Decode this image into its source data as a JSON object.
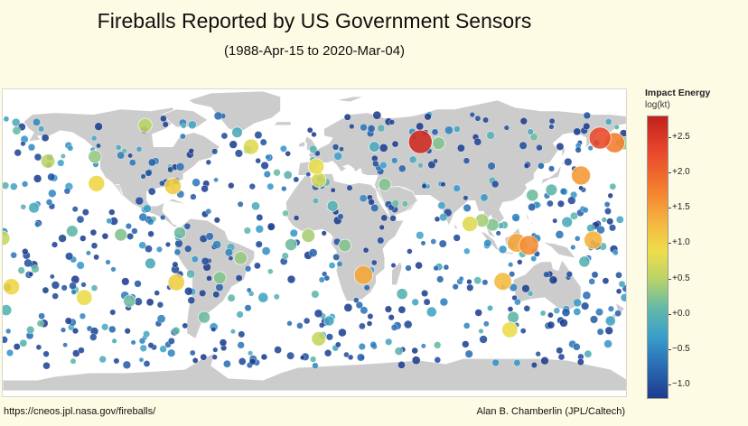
{
  "title": "Fireballs Reported by US Government Sensors",
  "subtitle": "(1988-Apr-15 to 2020-Mar-04)",
  "footer_left": "https://cneos.jpl.nasa.gov/fireballs/",
  "footer_right": "Alan B. Chamberlin (JPL/Caltech)",
  "colorbar": {
    "title": "Impact Energy",
    "unit": "log(kt)",
    "range": [
      -1.2,
      2.8
    ],
    "ticks": [
      {
        "value": 2.5,
        "label": "+2.5"
      },
      {
        "value": 2.0,
        "label": "+2.0"
      },
      {
        "value": 1.5,
        "label": "+1.5"
      },
      {
        "value": 1.0,
        "label": "+1.0"
      },
      {
        "value": 0.5,
        "label": "+0.5"
      },
      {
        "value": 0.0,
        "label": "+0.0"
      },
      {
        "value": -0.5,
        "label": "−0.5"
      },
      {
        "value": -1.0,
        "label": "−1.0"
      }
    ],
    "colors": [
      "#1d3b8c",
      "#2a6fb5",
      "#3a9fcb",
      "#63b9a7",
      "#b7d36a",
      "#eedd4a",
      "#f5b740",
      "#f47f2f",
      "#e8452b",
      "#c0221d"
    ]
  },
  "map": {
    "projection": "equirectangular",
    "land_color": "#cccccc",
    "ocean_color": "#ffffff",
    "coastline_color": "#ffffff"
  },
  "events": [
    {
      "lon": 60.5,
      "lat": 54.8,
      "energy": 2.65
    },
    {
      "lon": 164.0,
      "lat": 56.9,
      "energy": 2.3
    },
    {
      "lon": 172.4,
      "lat": 54.3,
      "energy": 1.9
    },
    {
      "lon": 153.0,
      "lat": 36.0,
      "energy": 1.7
    },
    {
      "lon": 123.0,
      "lat": -2.9,
      "energy": 1.8
    },
    {
      "lon": 116.0,
      "lat": -1.5,
      "energy": 1.6
    },
    {
      "lon": 160.0,
      "lat": 0.0,
      "energy": 1.5
    },
    {
      "lon": 27.8,
      "lat": -19.5,
      "energy": 1.6
    },
    {
      "lon": 108.0,
      "lat": -23.0,
      "energy": 1.4
    },
    {
      "lon": -82.0,
      "lat": 30.0,
      "energy": 1.2
    },
    {
      "lon": -126.0,
      "lat": 31.5,
      "energy": 1.1
    },
    {
      "lon": -80.0,
      "lat": -23.5,
      "energy": 1.2
    },
    {
      "lon": -175.0,
      "lat": -26.0,
      "energy": 1.1
    },
    {
      "lon": -133.0,
      "lat": -32.0,
      "energy": 1.0
    },
    {
      "lon": 0.5,
      "lat": 41.0,
      "energy": 1.0
    },
    {
      "lon": 2.0,
      "lat": 33.5,
      "energy": 0.8
    },
    {
      "lon": -37.0,
      "lat": 52.0,
      "energy": 0.9
    },
    {
      "lon": -98.0,
      "lat": 64.0,
      "energy": 0.6
    },
    {
      "lon": -4.0,
      "lat": 2.5,
      "energy": 0.5
    },
    {
      "lon": 2.0,
      "lat": -55.0,
      "energy": 0.7
    },
    {
      "lon": 112.0,
      "lat": -50.0,
      "energy": 1.0
    },
    {
      "lon": -180.0,
      "lat": 1.0,
      "energy": 0.7
    },
    {
      "lon": 96.0,
      "lat": 11.0,
      "energy": 0.5
    },
    {
      "lon": 89.0,
      "lat": 9.0,
      "energy": 0.9
    },
    {
      "lon": -154.0,
      "lat": 44.0,
      "energy": 0.6
    },
    {
      "lon": -112.0,
      "lat": 3.0,
      "energy": 0.3
    },
    {
      "lon": -43.0,
      "lat": -10.0,
      "energy": 0.4
    },
    {
      "lon": -55.0,
      "lat": -21.0,
      "energy": 0.3
    },
    {
      "lon": -127.0,
      "lat": 46.5,
      "energy": 0.4
    },
    {
      "lon": 71.0,
      "lat": 54.0,
      "energy": 0.3
    },
    {
      "lon": 102.0,
      "lat": 8.5,
      "energy": 0.3
    },
    {
      "lon": 178.0,
      "lat": 54.0,
      "energy": 0.4
    },
    {
      "lon": 40.0,
      "lat": 31.0,
      "energy": 0.3
    },
    {
      "lon": 17.0,
      "lat": -3.0,
      "energy": 0.3
    },
    {
      "lon": -14.0,
      "lat": -2.5,
      "energy": 0.2
    },
    {
      "lon": -78.0,
      "lat": 4.0,
      "energy": 0.2
    },
    {
      "lon": -107.0,
      "lat": -34.0,
      "energy": 0.2
    },
    {
      "lon": -64.0,
      "lat": -43.0,
      "energy": 0.2
    },
    {
      "lon": 125.0,
      "lat": 25.0,
      "energy": 0.2
    },
    {
      "lon": 136.0,
      "lat": 28.0,
      "energy": 0.1
    },
    {
      "lon": 114.0,
      "lat": -43.0,
      "energy": 0.1
    },
    {
      "lon": -140.0,
      "lat": 5.0,
      "energy": 0.1
    },
    {
      "lon": -178.0,
      "lat": -39.0,
      "energy": 0.0
    },
    {
      "lon": 50.0,
      "lat": -30.0,
      "energy": 0.0
    },
    {
      "lon": 155.0,
      "lat": -12.0,
      "energy": 0.0
    },
    {
      "lon": 10.0,
      "lat": 19.0,
      "energy": 0.0
    },
    {
      "lon": -45.0,
      "lat": 60.0,
      "energy": -0.1
    },
    {
      "lon": 34.0,
      "lat": 52.0,
      "energy": -0.1
    },
    {
      "lon": 145.0,
      "lat": 10.0,
      "energy": -0.1
    },
    {
      "lon": -162.0,
      "lat": 18.0,
      "energy": -0.1
    },
    {
      "lon": -95.0,
      "lat": -13.0,
      "energy": -0.1
    },
    {
      "lon": 67.0,
      "lat": -40.0,
      "energy": -0.2
    },
    {
      "lon": -30.0,
      "lat": -32.0,
      "energy": -0.2
    },
    {
      "lon": 8.0,
      "lat": -45.0,
      "energy": -0.2
    },
    {
      "lon": 170.0,
      "lat": -45.0,
      "energy": -0.2
    }
  ]
}
